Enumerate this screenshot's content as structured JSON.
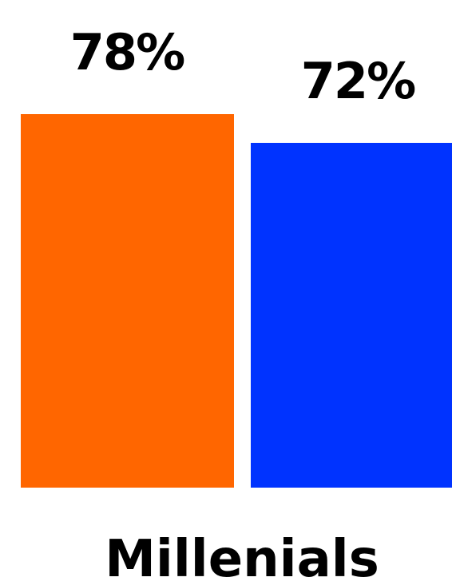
{
  "chart_data": {
    "type": "bar",
    "categories": [
      "Millenials"
    ],
    "series": [
      {
        "values": [
          78
        ],
        "value_label": "78%",
        "color": "#ff6600"
      },
      {
        "values": [
          72
        ],
        "value_label": "72%",
        "color": "#0033ff"
      }
    ],
    "ylim": [
      0,
      100
    ],
    "unit": "%",
    "grid": false,
    "legend": "none"
  }
}
